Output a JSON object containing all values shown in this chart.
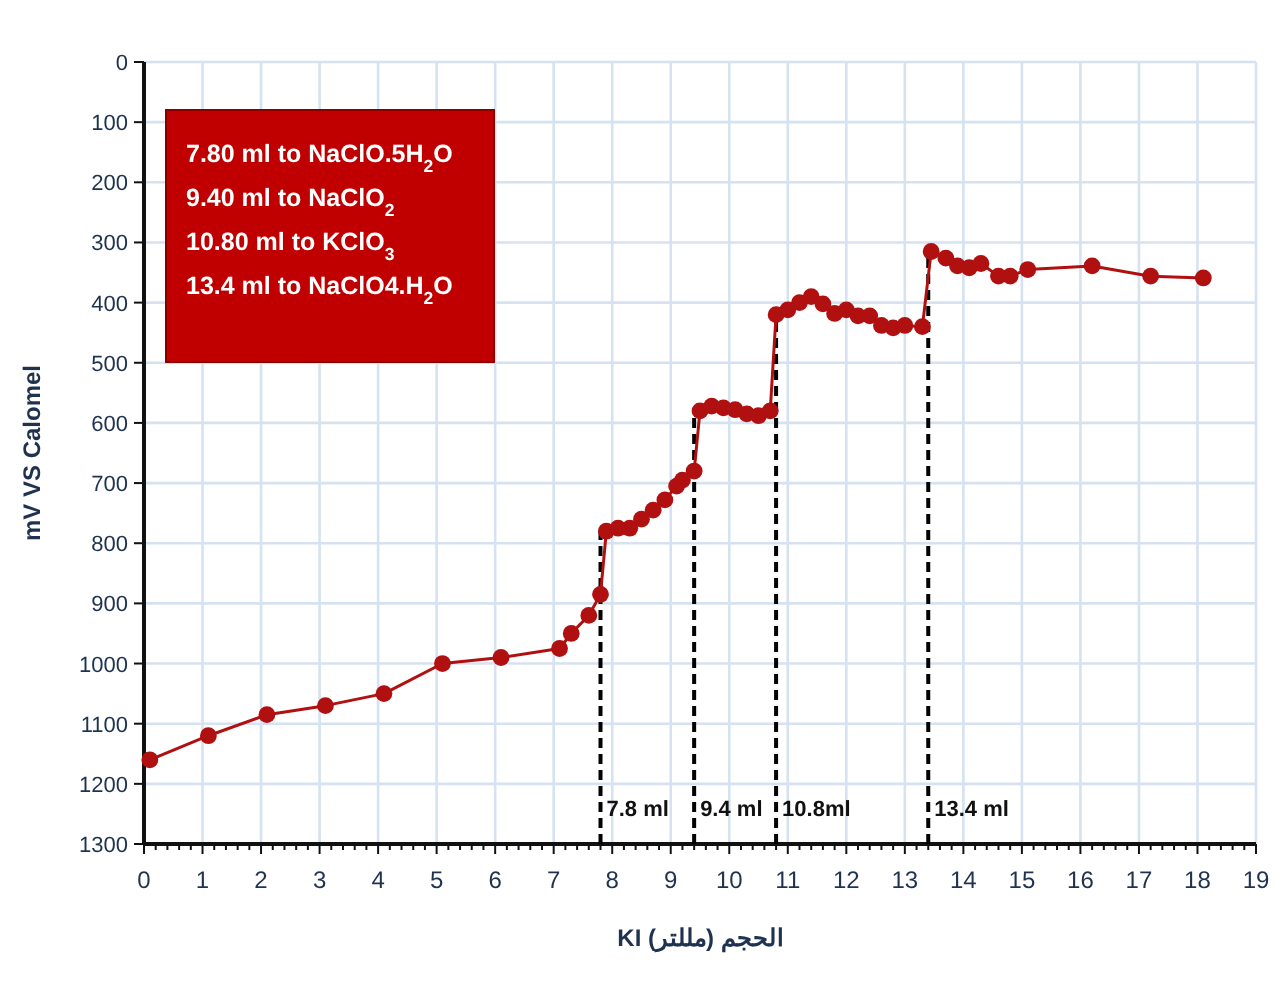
{
  "chart_data": {
    "type": "line",
    "xlabel": "الحجم (مللتر) KI",
    "ylabel": "mV VS Calomel",
    "annotations": [
      "7.80 ml to NaClO.5H$_{2}$O",
      "9.40 ml to NaClO$_{2}$",
      "10.80 ml to KClO$_{3}$",
      "13.4 ml to NaClO4.H$_{2}$O"
    ],
    "series": [
      {
        "color": "#b01010",
        "marker": "circle",
        "x": [
          0.1,
          1.1,
          2.1,
          3.1,
          4.1,
          5.1,
          6.1,
          7.1,
          7.3,
          7.6,
          7.8,
          7.9,
          8.1,
          8.3,
          8.5,
          8.7,
          8.9,
          9.1,
          9.2,
          9.4,
          9.5,
          9.7,
          9.9,
          10.1,
          10.3,
          10.5,
          10.7,
          10.8,
          11.0,
          11.2,
          11.4,
          11.6,
          11.8,
          12.0,
          12.2,
          12.4,
          12.6,
          12.8,
          13.0,
          13.3,
          13.45,
          13.7,
          13.9,
          14.1,
          14.3,
          14.6,
          14.8,
          15.1,
          16.2,
          17.2,
          18.1
        ],
        "values": [
          1160,
          1120,
          1085,
          1070,
          1050,
          1000,
          990,
          975,
          950,
          920,
          885,
          780,
          775,
          775,
          760,
          745,
          728,
          705,
          695,
          680,
          580,
          572,
          575,
          578,
          585,
          588,
          580,
          420,
          412,
          400,
          390,
          402,
          418,
          412,
          422,
          422,
          438,
          442,
          438,
          440,
          315,
          326,
          339,
          342,
          335,
          356,
          356,
          345,
          339,
          356,
          359
        ]
      }
    ],
    "xlim": [
      0,
      19
    ],
    "xticks": [
      0,
      1,
      2,
      3,
      4,
      5,
      6,
      7,
      8,
      9,
      10,
      11,
      12,
      13,
      14,
      15,
      16,
      17,
      18,
      19
    ],
    "ylim": [
      1300,
      0
    ],
    "yticks": [
      0,
      100,
      200,
      300,
      400,
      500,
      600,
      700,
      800,
      900,
      1000,
      1100,
      1200,
      1300
    ],
    "grid": true,
    "ref_lines": [
      {
        "axis": "x",
        "value": 7.8,
        "label": "7.8  ml",
        "line_style": "dashed",
        "color": "#000000"
      },
      {
        "axis": "x",
        "value": 9.4,
        "label": "9.4 ml",
        "line_style": "dashed",
        "color": "#000000"
      },
      {
        "axis": "x",
        "value": 10.8,
        "label": "10.8ml",
        "line_style": "dashed",
        "color": "#000000"
      },
      {
        "axis": "x",
        "value": 13.4,
        "label": "13.4 ml",
        "line_style": "dashed",
        "color": "#000000"
      }
    ]
  }
}
